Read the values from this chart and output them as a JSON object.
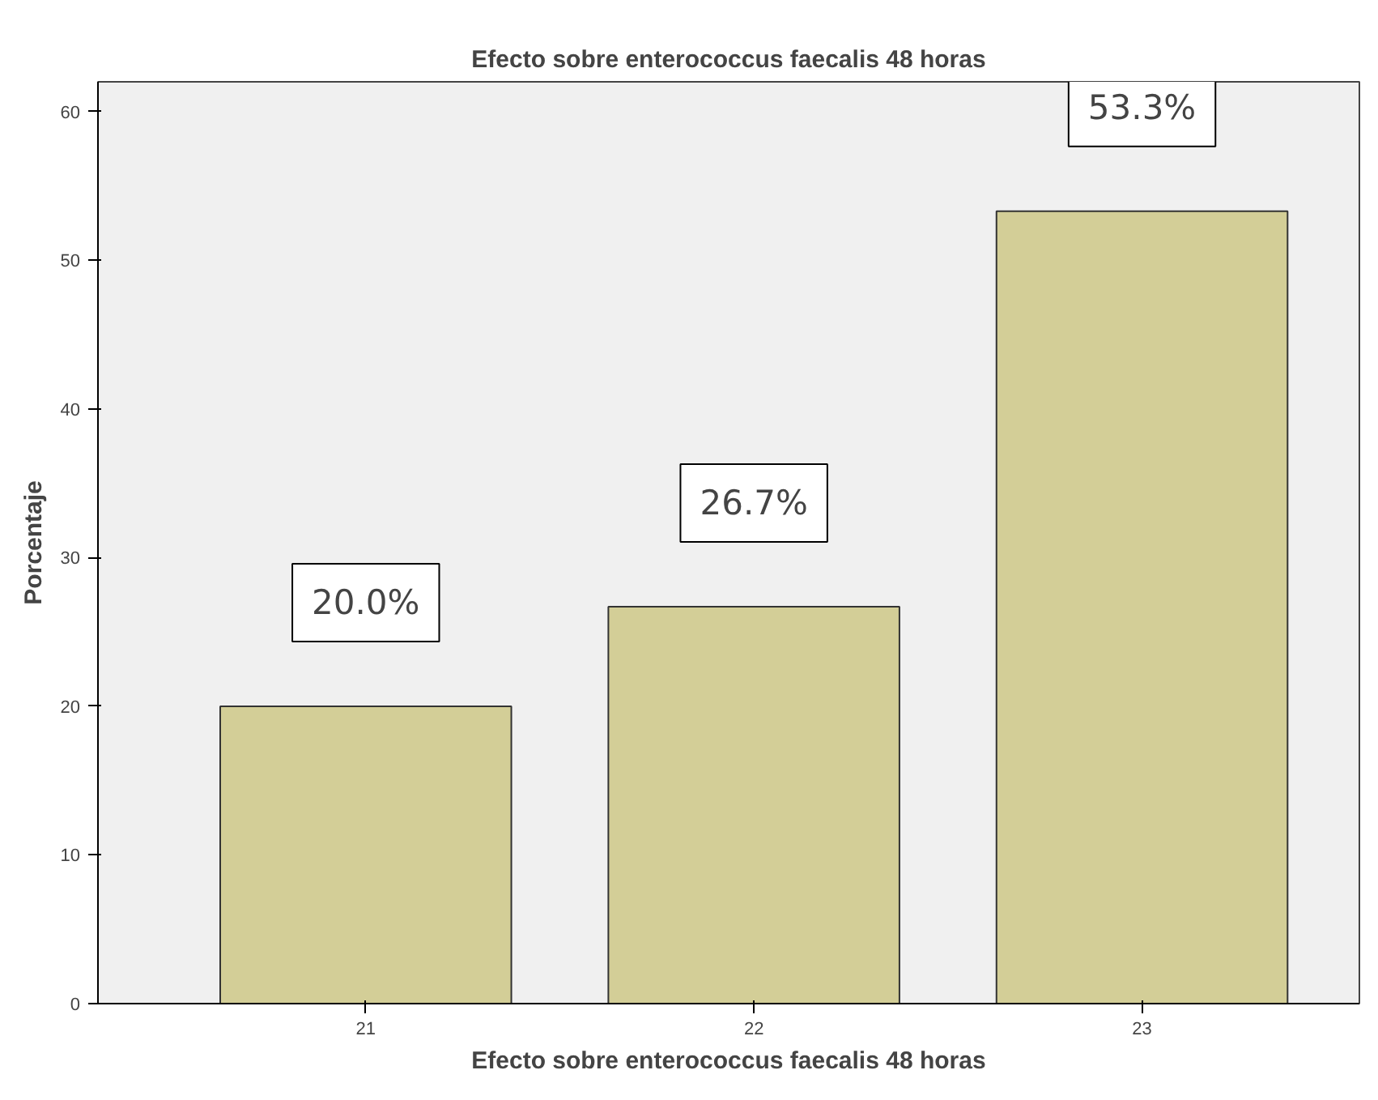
{
  "chart_data": {
    "type": "bar",
    "title": "Efecto sobre enterococcus faecalis 48 horas",
    "xlabel": "Efecto sobre enterococcus faecalis 48 horas",
    "ylabel": "Porcentaje",
    "categories": [
      "21",
      "22",
      "23"
    ],
    "values": [
      20.0,
      26.7,
      53.3
    ],
    "value_labels": [
      "20.0%",
      "26.7%",
      "53.3%"
    ],
    "color": "#d3ce97",
    "ylim": [
      0,
      62
    ],
    "yticks": [
      0,
      10,
      20,
      30,
      40,
      50,
      60
    ],
    "grid": false
  }
}
